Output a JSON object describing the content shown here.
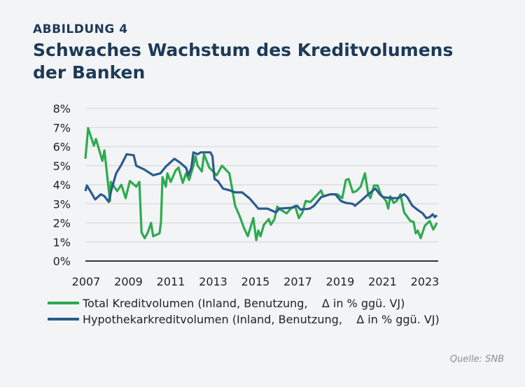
{
  "header": {
    "figure_label": "ABBILDUNG 4",
    "title": "Schwaches Wachstum des Kreditvolumens der Banken"
  },
  "source": "Quelle: SNB",
  "colors": {
    "total": "#2eaa50",
    "hypothek": "#2b5b8f",
    "title": "#1d3a57",
    "grid": "#dcdde0",
    "axis": "#333333"
  },
  "chart_data": {
    "type": "line",
    "title": "",
    "xlabel": "",
    "ylabel": "",
    "xlim": [
      2007,
      2023.6
    ],
    "ylim": [
      0,
      8
    ],
    "grid": true,
    "legend_placement": "bottom",
    "x_ticks": [
      "2007",
      "2009",
      "2011",
      "2013",
      "2015",
      "2017",
      "2019",
      "2021",
      "2023"
    ],
    "y_ticks": [
      "0%",
      "1%",
      "2%",
      "3%",
      "4%",
      "5%",
      "6%",
      "7%",
      "8%"
    ],
    "series": [
      {
        "name": "Total Kreditvolumen (Inland, Benutzung,    Δ in % ggü. VJ)",
        "points": [
          [
            2007.0,
            5.36
          ],
          [
            2007.13,
            6.97
          ],
          [
            2007.4,
            6.05
          ],
          [
            2007.5,
            6.4
          ],
          [
            2007.8,
            5.25
          ],
          [
            2007.9,
            5.8
          ],
          [
            2008.16,
            3.15
          ],
          [
            2008.2,
            4.15
          ],
          [
            2008.5,
            3.67
          ],
          [
            2008.7,
            4.0
          ],
          [
            2008.9,
            3.3
          ],
          [
            2009.1,
            4.2
          ],
          [
            2009.4,
            3.9
          ],
          [
            2009.55,
            4.15
          ],
          [
            2009.65,
            1.5
          ],
          [
            2009.8,
            1.2
          ],
          [
            2009.95,
            1.5
          ],
          [
            2010.1,
            2.0
          ],
          [
            2010.2,
            1.3
          ],
          [
            2010.5,
            1.45
          ],
          [
            2010.57,
            2.05
          ],
          [
            2010.64,
            4.4
          ],
          [
            2010.8,
            3.9
          ],
          [
            2010.87,
            4.6
          ],
          [
            2011.03,
            4.15
          ],
          [
            2011.26,
            4.75
          ],
          [
            2011.4,
            4.9
          ],
          [
            2011.6,
            4.1
          ],
          [
            2011.75,
            4.6
          ],
          [
            2011.9,
            4.25
          ],
          [
            2012.1,
            5.0
          ],
          [
            2012.2,
            5.5
          ],
          [
            2012.3,
            5.0
          ],
          [
            2012.5,
            4.7
          ],
          [
            2012.6,
            5.6
          ],
          [
            2012.85,
            4.9
          ],
          [
            2013.2,
            4.5
          ],
          [
            2013.45,
            5.0
          ],
          [
            2013.8,
            4.6
          ],
          [
            2014.07,
            2.9
          ],
          [
            2014.27,
            2.4
          ],
          [
            2014.5,
            1.7
          ],
          [
            2014.67,
            1.3
          ],
          [
            2014.93,
            2.25
          ],
          [
            2015.07,
            1.1
          ],
          [
            2015.17,
            1.6
          ],
          [
            2015.27,
            1.3
          ],
          [
            2015.43,
            1.9
          ],
          [
            2015.66,
            2.2
          ],
          [
            2015.76,
            1.9
          ],
          [
            2015.93,
            2.2
          ],
          [
            2016.06,
            2.85
          ],
          [
            2016.2,
            2.7
          ],
          [
            2016.5,
            2.5
          ],
          [
            2016.7,
            2.75
          ],
          [
            2016.9,
            2.9
          ],
          [
            2017.08,
            2.25
          ],
          [
            2017.25,
            2.55
          ],
          [
            2017.4,
            3.15
          ],
          [
            2017.63,
            3.1
          ],
          [
            2017.8,
            3.3
          ],
          [
            2018.13,
            3.7
          ],
          [
            2018.24,
            3.4
          ],
          [
            2018.57,
            3.5
          ],
          [
            2018.9,
            3.5
          ],
          [
            2019.13,
            3.3
          ],
          [
            2019.3,
            4.25
          ],
          [
            2019.43,
            4.3
          ],
          [
            2019.63,
            3.6
          ],
          [
            2019.8,
            3.67
          ],
          [
            2020.0,
            3.9
          ],
          [
            2020.2,
            4.6
          ],
          [
            2020.36,
            3.5
          ],
          [
            2020.46,
            3.3
          ],
          [
            2020.63,
            3.96
          ],
          [
            2020.8,
            3.96
          ],
          [
            2020.95,
            3.5
          ],
          [
            2021.2,
            3.15
          ],
          [
            2021.3,
            2.75
          ],
          [
            2021.4,
            3.4
          ],
          [
            2021.56,
            3.05
          ],
          [
            2021.7,
            3.15
          ],
          [
            2021.88,
            3.5
          ],
          [
            2022.05,
            2.55
          ],
          [
            2022.35,
            2.1
          ],
          [
            2022.5,
            2.05
          ],
          [
            2022.6,
            1.45
          ],
          [
            2022.7,
            1.6
          ],
          [
            2022.83,
            1.2
          ],
          [
            2023.03,
            1.85
          ],
          [
            2023.26,
            2.1
          ],
          [
            2023.43,
            1.65
          ],
          [
            2023.6,
            2.0
          ]
        ]
      },
      {
        "name": "Hypothekarkreditvolumen (Inland, Benutzung,    Δ in % ggü. VJ)",
        "points": [
          [
            2007.0,
            3.67
          ],
          [
            2007.07,
            3.96
          ],
          [
            2007.23,
            3.67
          ],
          [
            2007.46,
            3.23
          ],
          [
            2007.73,
            3.5
          ],
          [
            2007.9,
            3.4
          ],
          [
            2008.1,
            3.1
          ],
          [
            2008.22,
            3.7
          ],
          [
            2008.45,
            4.6
          ],
          [
            2008.7,
            5.05
          ],
          [
            2008.95,
            5.6
          ],
          [
            2009.28,
            5.55
          ],
          [
            2009.4,
            5.0
          ],
          [
            2009.78,
            4.8
          ],
          [
            2010.2,
            4.5
          ],
          [
            2010.54,
            4.6
          ],
          [
            2010.8,
            4.95
          ],
          [
            2011.2,
            5.36
          ],
          [
            2011.46,
            5.17
          ],
          [
            2011.76,
            4.88
          ],
          [
            2011.86,
            4.5
          ],
          [
            2012.0,
            4.88
          ],
          [
            2012.1,
            5.7
          ],
          [
            2012.3,
            5.6
          ],
          [
            2012.45,
            5.7
          ],
          [
            2012.9,
            5.7
          ],
          [
            2013.0,
            5.5
          ],
          [
            2013.1,
            4.3
          ],
          [
            2013.25,
            4.2
          ],
          [
            2013.5,
            3.8
          ],
          [
            2013.84,
            3.7
          ],
          [
            2014.07,
            3.6
          ],
          [
            2014.4,
            3.6
          ],
          [
            2014.74,
            3.3
          ],
          [
            2014.9,
            3.1
          ],
          [
            2015.17,
            2.75
          ],
          [
            2015.6,
            2.75
          ],
          [
            2016.0,
            2.55
          ],
          [
            2016.16,
            2.75
          ],
          [
            2016.8,
            2.8
          ],
          [
            2017.0,
            2.9
          ],
          [
            2017.15,
            2.7
          ],
          [
            2017.6,
            2.75
          ],
          [
            2017.8,
            2.9
          ],
          [
            2018.13,
            3.35
          ],
          [
            2018.57,
            3.5
          ],
          [
            2018.8,
            3.5
          ],
          [
            2019.07,
            3.15
          ],
          [
            2019.3,
            3.05
          ],
          [
            2019.63,
            3.0
          ],
          [
            2019.73,
            2.9
          ],
          [
            2020.0,
            3.15
          ],
          [
            2020.36,
            3.5
          ],
          [
            2020.7,
            3.8
          ],
          [
            2020.9,
            3.5
          ],
          [
            2021.05,
            3.35
          ],
          [
            2021.45,
            3.3
          ],
          [
            2021.78,
            3.3
          ],
          [
            2022.05,
            3.5
          ],
          [
            2022.2,
            3.35
          ],
          [
            2022.44,
            2.9
          ],
          [
            2022.67,
            2.7
          ],
          [
            2022.93,
            2.5
          ],
          [
            2023.1,
            2.25
          ],
          [
            2023.26,
            2.3
          ],
          [
            2023.4,
            2.45
          ],
          [
            2023.5,
            2.3
          ],
          [
            2023.6,
            2.4
          ]
        ]
      }
    ]
  }
}
